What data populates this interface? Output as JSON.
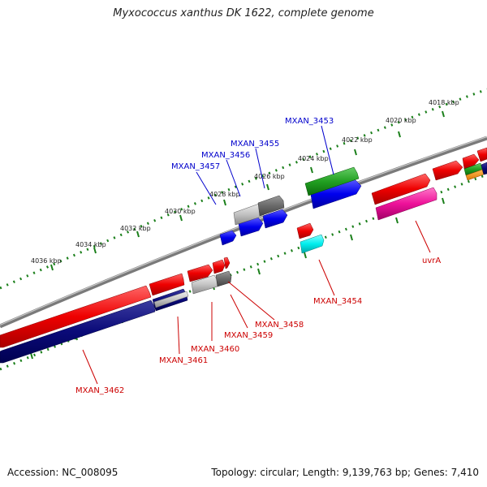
{
  "title": "Myxococcus xanthus DK 1622, complete genome",
  "footer": {
    "accession": "Accession: NC_008095",
    "info": "Topology: circular; Length: 9,139,763 bp; Genes: 7,410"
  },
  "colors": {
    "label_forward": "#0000cc",
    "label_reverse": "#cc0000",
    "backbone": "#808080",
    "tick": "#1a7f1a"
  },
  "scale_labels": [
    "4018 kbp",
    "4020 kbp",
    "4022 kbp",
    "4024 kbp",
    "4026 kbp",
    "4028 kbp",
    "4030 kbp",
    "4032 kbp",
    "4034 kbp",
    "4036 kbp"
  ],
  "gene_labels": {
    "mxan_3453": "MXAN_3453",
    "mxan_3455": "MXAN_3455",
    "mxan_3456": "MXAN_3456",
    "mxan_3457": "MXAN_3457",
    "mxan_3454": "MXAN_3454",
    "uvra": "uvrA",
    "mxan_3458": "MXAN_3458",
    "mxan_3459": "MXAN_3459",
    "mxan_3460": "MXAN_3460",
    "mxan_3461": "MXAN_3461",
    "mxan_3462": "MXAN_3462"
  }
}
